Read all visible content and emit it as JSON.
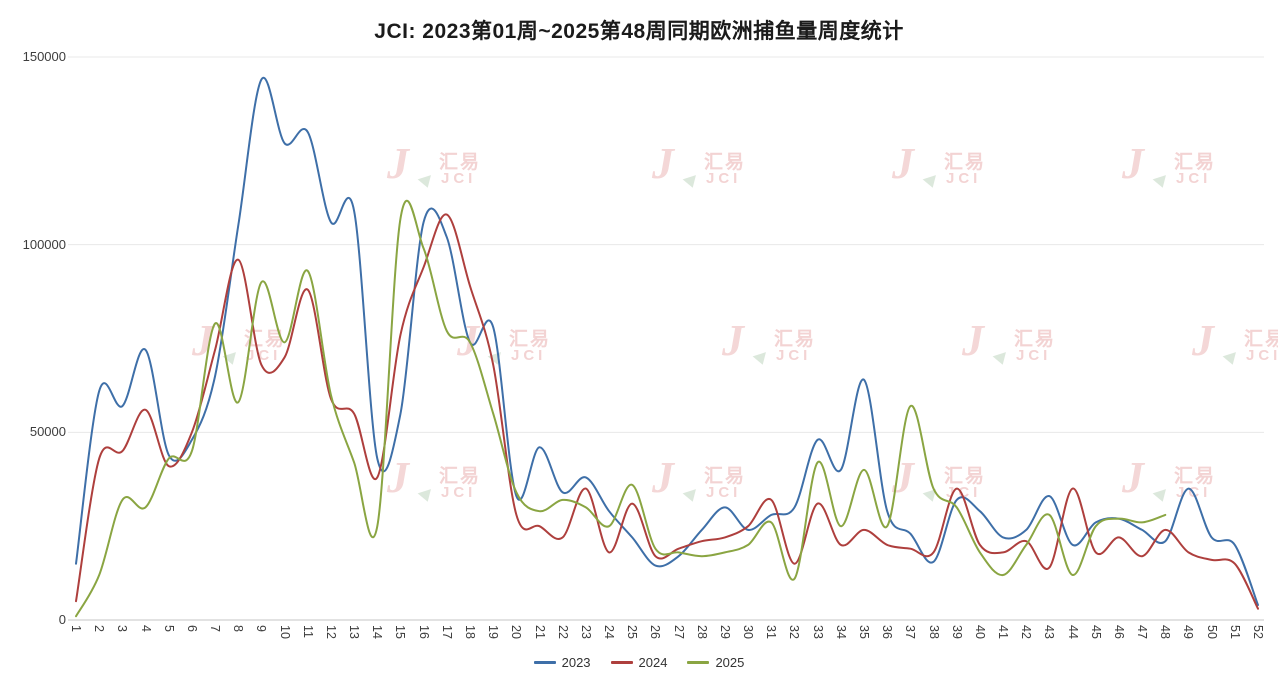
{
  "watermark": {
    "logo_j": "J",
    "cn": "汇易",
    "en": "JCI"
  },
  "chart_data": {
    "type": "line",
    "title": "JCI: 2023第01周~2025第48周同期欧洲捕鱼量周度统计",
    "xlabel": "",
    "ylabel": "",
    "ylim": [
      0,
      150000
    ],
    "yticks": [
      0,
      50000,
      100000,
      150000
    ],
    "grid": "horizontal",
    "legend_position": "bottom",
    "smooth": true,
    "categories": [
      "1",
      "2",
      "3",
      "4",
      "5",
      "6",
      "7",
      "8",
      "9",
      "10",
      "11",
      "12",
      "13",
      "14",
      "15",
      "16",
      "17",
      "18",
      "19",
      "20",
      "21",
      "22",
      "23",
      "24",
      "25",
      "26",
      "27",
      "28",
      "29",
      "30",
      "31",
      "32",
      "33",
      "34",
      "35",
      "36",
      "37",
      "38",
      "39",
      "40",
      "41",
      "42",
      "43",
      "44",
      "45",
      "46",
      "47",
      "48",
      "49",
      "50",
      "51",
      "52"
    ],
    "series": [
      {
        "name": "2023",
        "color": "#3e6fa8",
        "values": [
          15000,
          61000,
          57000,
          72000,
          44000,
          48000,
          65000,
          105000,
          144000,
          127000,
          130000,
          106000,
          109000,
          43000,
          55000,
          106000,
          102000,
          74000,
          78000,
          33000,
          46000,
          34000,
          38000,
          29000,
          22000,
          14500,
          17000,
          24000,
          30000,
          24000,
          28000,
          30000,
          48000,
          40000,
          64000,
          29000,
          23000,
          15500,
          32000,
          29000,
          22000,
          24000,
          33000,
          20000,
          26000,
          27000,
          24000,
          21000,
          35000,
          22000,
          20000,
          4000
        ]
      },
      {
        "name": "2024",
        "color": "#ae3f3d",
        "values": [
          5000,
          43000,
          45000,
          56000,
          41000,
          50000,
          72000,
          96000,
          68000,
          70000,
          88000,
          59000,
          55000,
          38000,
          76000,
          94000,
          108000,
          89000,
          68000,
          28000,
          25000,
          22000,
          35000,
          18000,
          31000,
          17000,
          19000,
          21000,
          22000,
          25000,
          32000,
          15000,
          31000,
          20000,
          24000,
          20000,
          19000,
          18000,
          35000,
          20000,
          18000,
          21000,
          14000,
          35000,
          18000,
          22000,
          17000,
          24000,
          18000,
          16000,
          15000,
          3000
        ]
      },
      {
        "name": "2025",
        "color": "#8aa542",
        "values": [
          1000,
          12000,
          32000,
          30000,
          43000,
          45000,
          79000,
          58000,
          90000,
          74000,
          93000,
          60000,
          42000,
          25000,
          107000,
          99000,
          77000,
          74000,
          55000,
          34000,
          29000,
          32000,
          30000,
          25000,
          36000,
          19000,
          18000,
          17000,
          18000,
          20000,
          26000,
          11000,
          42000,
          25000,
          40000,
          25000,
          57000,
          35000,
          30000,
          18000,
          12000,
          20000,
          28000,
          12000,
          25000,
          27000,
          26000,
          28000
        ]
      }
    ]
  }
}
